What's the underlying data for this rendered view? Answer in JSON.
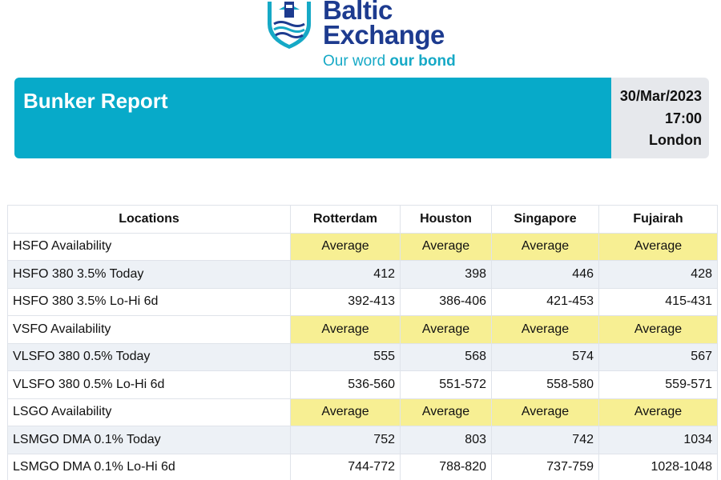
{
  "logo": {
    "line1": "Baltic",
    "line2": "Exchange",
    "tagline_regular": "Our word ",
    "tagline_bold": "our bond",
    "colors": {
      "navy": "#1d3b8f",
      "teal": "#16a9c6"
    }
  },
  "banner": {
    "title": "Bunker Report",
    "date": "30/Mar/2023",
    "time": "17:00",
    "city": "London",
    "colors": {
      "title_bg": "#07aac9",
      "meta_bg": "#e6e8ec"
    }
  },
  "table": {
    "headers": [
      "Locations",
      "Rotterdam",
      "Houston",
      "Singapore",
      "Fujairah"
    ],
    "rows": [
      {
        "label": "HSFO Availability",
        "values": [
          "Average",
          "Average",
          "Average",
          "Average"
        ]
      },
      {
        "label": "HSFO 380 3.5% Today",
        "values": [
          "412",
          "398",
          "446",
          "428"
        ]
      },
      {
        "label": "HSFO 380 3.5% Lo-Hi 6d",
        "values": [
          "392-413",
          "386-406",
          "421-453",
          "415-431"
        ]
      },
      {
        "label": "VSFO Availability",
        "values": [
          "Average",
          "Average",
          "Average",
          "Average"
        ]
      },
      {
        "label": "VLSFO 380 0.5% Today",
        "values": [
          "555",
          "568",
          "574",
          "567"
        ]
      },
      {
        "label": "VLSFO 380 0.5% Lo-Hi 6d",
        "values": [
          "536-560",
          "551-572",
          "558-580",
          "559-571"
        ]
      },
      {
        "label": "LSGO Availability",
        "values": [
          "Average",
          "Average",
          "Average",
          "Average"
        ]
      },
      {
        "label": "LSMGO DMA 0.1% Today",
        "values": [
          "752",
          "803",
          "742",
          "1034"
        ]
      },
      {
        "label": "LSMGO DMA 0.1% Lo-Hi 6d",
        "values": [
          "744-772",
          "788-820",
          "737-759",
          "1028-1048"
        ]
      }
    ],
    "colors": {
      "availability_bg": "#f7ef93",
      "shaded_row_bg": "#edf1f6"
    }
  }
}
